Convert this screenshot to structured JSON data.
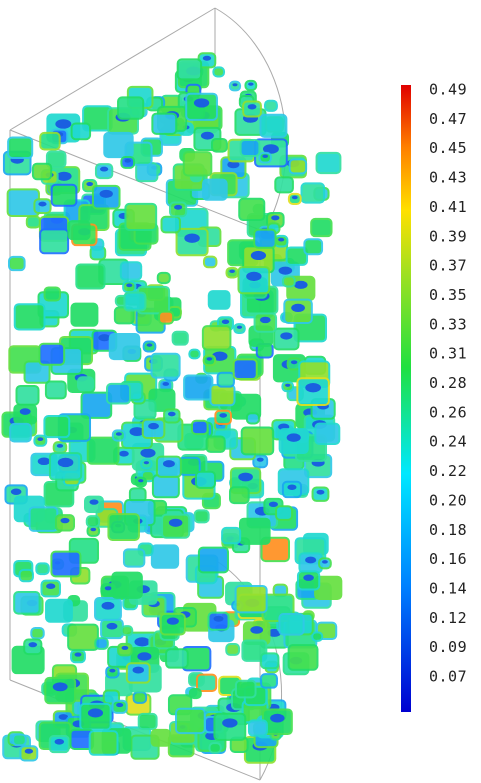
{
  "colorbar": {
    "labels": [
      "0.49",
      "0.47",
      "0.45",
      "0.43",
      "0.41",
      "0.39",
      "0.37",
      "0.35",
      "0.33",
      "0.31",
      "0.28",
      "0.26",
      "0.24",
      "0.22",
      "0.20",
      "0.18",
      "0.16",
      "0.14",
      "0.12",
      "0.09",
      "0.07"
    ]
  }
}
